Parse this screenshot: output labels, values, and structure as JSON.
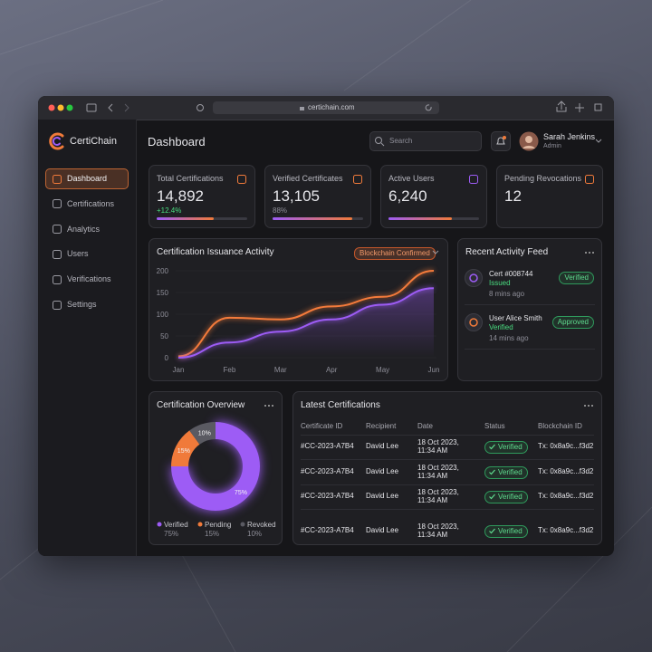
{
  "browser": {
    "url": "certichain.com"
  },
  "app": {
    "name": "CertiChain"
  },
  "sidebar": {
    "items": [
      "Dashboard",
      "Certifications",
      "Analytics",
      "Users",
      "Verifications",
      "Settings"
    ],
    "active": 0
  },
  "header": {
    "title": "Dashboard",
    "search_placeholder": "Search",
    "user": {
      "name": "Sarah Jenkins",
      "role": "Admin"
    }
  },
  "stats": [
    {
      "label": "Total Certifications",
      "value": "14,892",
      "change": "+12.4%",
      "change_color": "#4ade80",
      "progress": 63,
      "icon_color": "#f07a3a"
    },
    {
      "label": "Verified Certificates",
      "value": "13,105",
      "change": "88%",
      "change_color": "#8e8e98",
      "progress": 88,
      "icon_color": "#f07a3a"
    },
    {
      "label": "Active Users",
      "value": "6,240",
      "progress": 70,
      "icon_color": "#9d5cf5"
    },
    {
      "label": "Pending Revocations",
      "value": "12",
      "icon_color": "#f07a3a"
    }
  ],
  "chart_data": [
    {
      "type": "line",
      "title": "Certification Issuance Activity",
      "badge": "Blockchain Confirmed",
      "categories": [
        "Jan",
        "Feb",
        "Mar",
        "Apr",
        "May",
        "Jun"
      ],
      "ylim": [
        0,
        200
      ],
      "yticks": [
        0,
        50,
        100,
        150,
        200
      ],
      "grid": true,
      "series": [
        {
          "color": "#f47b3b",
          "values": [
            3,
            92,
            88,
            118,
            140,
            200
          ]
        },
        {
          "color": "#9d5cf5",
          "values": [
            0,
            35,
            60,
            88,
            122,
            160
          ]
        }
      ]
    },
    {
      "type": "pie",
      "donut": true,
      "title": "Certification Overview",
      "categories": [
        "Verified",
        "Pending",
        "Revoked"
      ],
      "values": [
        75,
        15,
        10
      ],
      "value_labels": [
        "75%",
        "15%",
        "10%"
      ],
      "colors": [
        "#9d5cf5",
        "#f07a3a",
        "#5a5a62"
      ]
    }
  ],
  "feed": {
    "title": "Recent Activity Feed",
    "items": [
      {
        "title": "Cert #008744",
        "status": "Issued",
        "time": "8 mins ago",
        "badge": "Verified",
        "icon_color": "#9d5cf5"
      },
      {
        "title": "User Alice Smith",
        "status": "Verified",
        "time": "14 mins ago",
        "badge": "Approved",
        "icon_color": "#f07a3a"
      }
    ]
  },
  "table": {
    "title": "Latest Certifications",
    "columns": [
      "Certificate ID",
      "Recipient",
      "Date",
      "Status",
      "Blockchain ID"
    ],
    "rows": [
      [
        "#CC-2023-A7B4",
        "David Lee",
        "18 Oct 2023, 11:34 AM",
        "Verified",
        "Tx: 0x8a9c...f3d2"
      ],
      [
        "#CC-2023-A7B4",
        "David Lee",
        "18 Oct 2023, 11:34 AM",
        "Verified",
        "Tx: 0x8a9c...f3d2"
      ],
      [
        "#CC-2023-A7B4",
        "David Lee",
        "18 Oct 2023, 11:34 AM",
        "Verified",
        "Tx: 0x8a9c...f3d2"
      ],
      [
        "#CC-2023-A7B4",
        "David Lee",
        "18 Oct 2023, 11:34 AM",
        "Verified",
        "Tx: 0x8a9c...f3d2"
      ]
    ]
  }
}
